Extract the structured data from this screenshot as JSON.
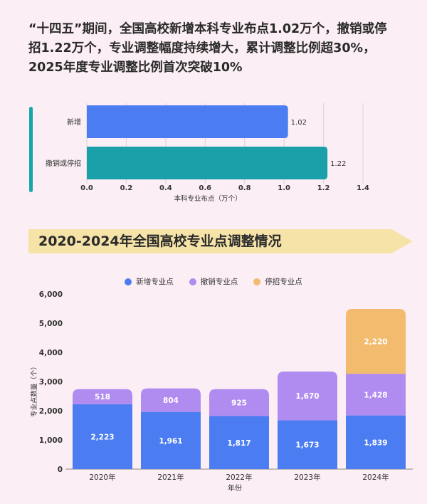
{
  "headline": {
    "line1": "“十四五”期间，全国高校新增本科专业布点1.02万个，撤销或停",
    "line2": "招1.22万个，专业调整幅度持续增大，累计调整比例超30%，",
    "line3": "2025年度专业调整比例首次突破10%"
  },
  "banner": {
    "title": "2020-2024年全国高校专业点调整情况"
  },
  "colors": {
    "background": "#fbeef4",
    "bar_blue": "#4b7cf2",
    "bar_teal": "#1aa0a8",
    "new": "#4b7cf2",
    "cancel": "#b18cf0",
    "stop": "#f2bb6e",
    "banner": "#f5e3a8"
  },
  "chart_data": [
    {
      "type": "bar",
      "orientation": "horizontal",
      "categories": [
        "新增",
        "撤销或停招"
      ],
      "values": [
        1.02,
        1.22
      ],
      "data_labels": [
        "1.02",
        "1.22"
      ],
      "xlabel": "本科专业布点（万个）",
      "ylabel": "",
      "xlim": [
        0,
        1.4
      ],
      "xticks": [
        "0.0",
        "0.2",
        "0.4",
        "0.6",
        "0.8",
        "1.0",
        "1.2",
        "1.4"
      ],
      "grid": true
    },
    {
      "type": "bar",
      "stacked": true,
      "categories": [
        "2020年",
        "2021年",
        "2022年",
        "2023年",
        "2024年"
      ],
      "series": [
        {
          "name": "新增专业点",
          "values": [
            2223,
            1961,
            1817,
            1673,
            1839
          ],
          "labels": [
            "2,223",
            "1,961",
            "1,817",
            "1,673",
            "1,839"
          ]
        },
        {
          "name": "撤销专业点",
          "values": [
            518,
            804,
            925,
            1670,
            1428
          ],
          "labels": [
            "518",
            "804",
            "925",
            "1,670",
            "1,428"
          ]
        },
        {
          "name": "停招专业点",
          "values": [
            0,
            0,
            0,
            0,
            2220
          ],
          "labels": [
            "",
            "",
            "",
            "",
            "2,220"
          ]
        }
      ],
      "xlabel": "年份",
      "ylabel": "专业点数量（个）",
      "ylim": [
        0,
        6000
      ],
      "yticks": [
        "0",
        "1,000",
        "2,000",
        "3,000",
        "4,000",
        "5,000",
        "6,000"
      ],
      "legend": "top-center",
      "grid": false
    }
  ]
}
